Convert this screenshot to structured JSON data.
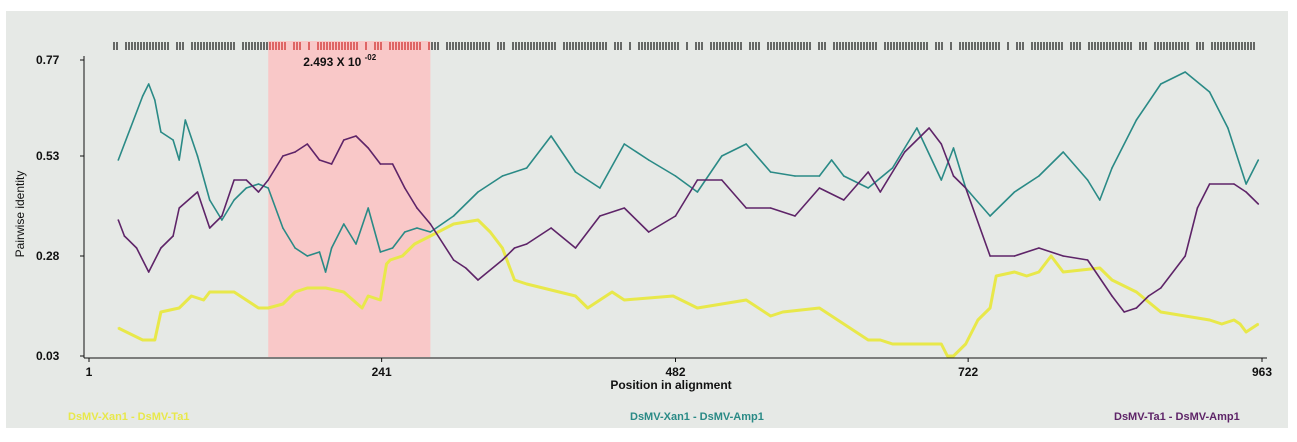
{
  "chart_data": {
    "type": "line",
    "xlabel": "Position in alignment",
    "ylabel": "Pairwise identity",
    "x_ticks": [
      "1",
      "241",
      "482",
      "722",
      "963"
    ],
    "y_ticks": [
      "0.77",
      "0.53",
      "0.28",
      "0.03"
    ],
    "xlim": [
      1,
      963
    ],
    "ylim": [
      0.03,
      0.77
    ],
    "highlight": {
      "x_range": [
        148,
        281
      ],
      "label_base": "2.493 X 10",
      "label_exp": "-02",
      "color": "#f9c8c8"
    },
    "series": [
      {
        "name": "DsMV-Xan1 - DsMV-Ta1",
        "color": "#e8e84a",
        "x": [
          25,
          45,
          55,
          60,
          75,
          85,
          95,
          100,
          120,
          140,
          148,
          160,
          170,
          180,
          195,
          210,
          225,
          230,
          240,
          245,
          248,
          258,
          268,
          281,
          300,
          320,
          330,
          340,
          350,
          360,
          400,
          410,
          430,
          440,
          480,
          500,
          520,
          540,
          560,
          570,
          600,
          640,
          650,
          660,
          680,
          700,
          705,
          710,
          720,
          730,
          740,
          745,
          760,
          770,
          780,
          790,
          800,
          830,
          840,
          860,
          880,
          900,
          920,
          930,
          940,
          945,
          950,
          955,
          960
        ],
        "y": [
          0.1,
          0.07,
          0.07,
          0.14,
          0.15,
          0.18,
          0.17,
          0.19,
          0.19,
          0.15,
          0.15,
          0.16,
          0.19,
          0.2,
          0.2,
          0.19,
          0.15,
          0.18,
          0.17,
          0.26,
          0.27,
          0.28,
          0.31,
          0.33,
          0.36,
          0.37,
          0.34,
          0.3,
          0.22,
          0.21,
          0.18,
          0.15,
          0.19,
          0.17,
          0.18,
          0.15,
          0.16,
          0.17,
          0.13,
          0.14,
          0.15,
          0.07,
          0.07,
          0.06,
          0.06,
          0.06,
          0.03,
          0.03,
          0.06,
          0.12,
          0.15,
          0.23,
          0.24,
          0.23,
          0.24,
          0.28,
          0.24,
          0.25,
          0.22,
          0.19,
          0.14,
          0.13,
          0.12,
          0.11,
          0.12,
          0.11,
          0.09,
          0.1,
          0.11
        ]
      },
      {
        "name": "DsMV-Xan1 - DsMV-Amp1",
        "color": "#2a8a86",
        "x": [
          25,
          35,
          45,
          50,
          55,
          60,
          70,
          75,
          80,
          90,
          100,
          110,
          120,
          130,
          140,
          148,
          160,
          170,
          180,
          190,
          195,
          200,
          210,
          220,
          230,
          240,
          250,
          260,
          270,
          281,
          300,
          320,
          340,
          360,
          380,
          400,
          420,
          440,
          460,
          482,
          500,
          520,
          540,
          560,
          580,
          600,
          610,
          620,
          640,
          660,
          680,
          700,
          710,
          720,
          740,
          760,
          780,
          800,
          820,
          830,
          840,
          860,
          880,
          900,
          920,
          935,
          950,
          960
        ],
        "y": [
          0.52,
          0.6,
          0.68,
          0.71,
          0.67,
          0.59,
          0.57,
          0.52,
          0.62,
          0.53,
          0.42,
          0.37,
          0.42,
          0.45,
          0.46,
          0.45,
          0.35,
          0.3,
          0.28,
          0.29,
          0.24,
          0.3,
          0.36,
          0.31,
          0.4,
          0.29,
          0.3,
          0.34,
          0.35,
          0.34,
          0.38,
          0.44,
          0.48,
          0.5,
          0.58,
          0.49,
          0.45,
          0.56,
          0.52,
          0.48,
          0.44,
          0.53,
          0.56,
          0.49,
          0.48,
          0.48,
          0.52,
          0.48,
          0.45,
          0.5,
          0.6,
          0.47,
          0.55,
          0.45,
          0.38,
          0.44,
          0.48,
          0.54,
          0.47,
          0.42,
          0.5,
          0.62,
          0.71,
          0.74,
          0.69,
          0.6,
          0.46,
          0.52
        ]
      },
      {
        "name": "DsMV-Ta1 - DsMV-Amp1",
        "color": "#5e2468",
        "x": [
          25,
          30,
          40,
          50,
          60,
          70,
          75,
          90,
          100,
          110,
          120,
          130,
          140,
          148,
          160,
          170,
          180,
          190,
          200,
          210,
          220,
          230,
          240,
          250,
          260,
          270,
          281,
          300,
          310,
          320,
          340,
          350,
          360,
          380,
          400,
          420,
          440,
          460,
          482,
          500,
          520,
          540,
          560,
          580,
          600,
          620,
          640,
          650,
          670,
          690,
          700,
          710,
          720,
          740,
          760,
          780,
          800,
          820,
          840,
          850,
          860,
          870,
          880,
          900,
          910,
          920,
          940,
          950,
          960
        ],
        "y": [
          0.37,
          0.33,
          0.3,
          0.24,
          0.3,
          0.33,
          0.4,
          0.44,
          0.35,
          0.38,
          0.47,
          0.47,
          0.44,
          0.47,
          0.53,
          0.54,
          0.56,
          0.52,
          0.51,
          0.57,
          0.58,
          0.55,
          0.51,
          0.51,
          0.45,
          0.4,
          0.36,
          0.27,
          0.25,
          0.22,
          0.27,
          0.3,
          0.31,
          0.35,
          0.3,
          0.38,
          0.4,
          0.34,
          0.38,
          0.47,
          0.47,
          0.4,
          0.4,
          0.38,
          0.45,
          0.42,
          0.49,
          0.44,
          0.54,
          0.6,
          0.56,
          0.48,
          0.45,
          0.28,
          0.28,
          0.3,
          0.28,
          0.27,
          0.18,
          0.14,
          0.15,
          0.18,
          0.2,
          0.28,
          0.4,
          0.46,
          0.46,
          0.44,
          0.41
        ]
      }
    ]
  }
}
